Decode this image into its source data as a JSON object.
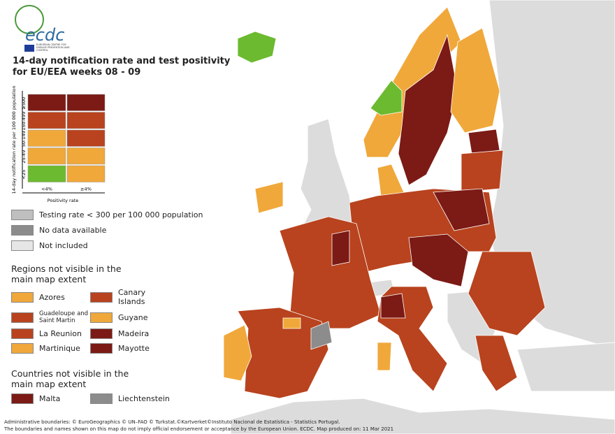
{
  "header": {
    "logo": "ecdc",
    "agency": "EUROPEAN CENTRE FOR DISEASE PREVENTION AND CONTROL",
    "title_line1": "14-day notification rate and test positivity",
    "title_line2": "for EU/EEA weeks 08 - 09"
  },
  "matrix": {
    "y_label": "14-day notification rate per 100 000 population",
    "x_label": "Positivity rate",
    "rows": [
      {
        "label": "≥500",
        "colors": [
          "#7c1a15",
          "#7c1a15"
        ]
      },
      {
        "label": "150-499",
        "colors": [
          "#b8431e",
          "#b8431e"
        ]
      },
      {
        "label": "50-149",
        "colors": [
          "#f0a83a",
          "#b8431e"
        ]
      },
      {
        "label": "25-49",
        "colors": [
          "#f0a83a",
          "#f0a83a"
        ]
      },
      {
        "label": "<25",
        "colors": [
          "#6cba2f",
          "#f0a83a"
        ]
      }
    ],
    "columns": [
      "<4%",
      "≥4%"
    ]
  },
  "status_legend": [
    {
      "label": "Testing rate < 300 per 100 000 population",
      "color": "#bfbfbf"
    },
    {
      "label": "No data available",
      "color": "#8c8c8c"
    },
    {
      "label": "Not included",
      "color": "#e6e6e6"
    }
  ],
  "regions": {
    "title": "Regions not visible in the main map extent",
    "items": [
      {
        "label": "Azores",
        "color": "#f0a83a"
      },
      {
        "label": "Canary Islands",
        "color": "#b8431e"
      },
      {
        "label": "Guadeloupe and Saint Martin",
        "color": "#b8431e"
      },
      {
        "label": "Guyane",
        "color": "#f0a83a"
      },
      {
        "label": "La Reunion",
        "color": "#b8431e"
      },
      {
        "label": "Madeira",
        "color": "#7c1a15"
      },
      {
        "label": "Martinique",
        "color": "#f0a83a"
      },
      {
        "label": "Mayotte",
        "color": "#7c1a15"
      }
    ]
  },
  "countries": {
    "title": "Countries not visible in the main map extent",
    "items": [
      {
        "label": "Malta",
        "color": "#7c1a15"
      },
      {
        "label": "Liechtenstein",
        "color": "#8c8c8c"
      }
    ]
  },
  "footer": {
    "line1": "Administrative boundaries: © EuroGeographics © UN–FAO © Turkstat.©Kartverket©Instituto Nacional de Estatística - Statistics Portugal.",
    "line2": "The boundaries and names shown on this map do not imply official endorsement or acceptance by the European Union. ECDC. Map produced on: 11 Mar 2021"
  }
}
